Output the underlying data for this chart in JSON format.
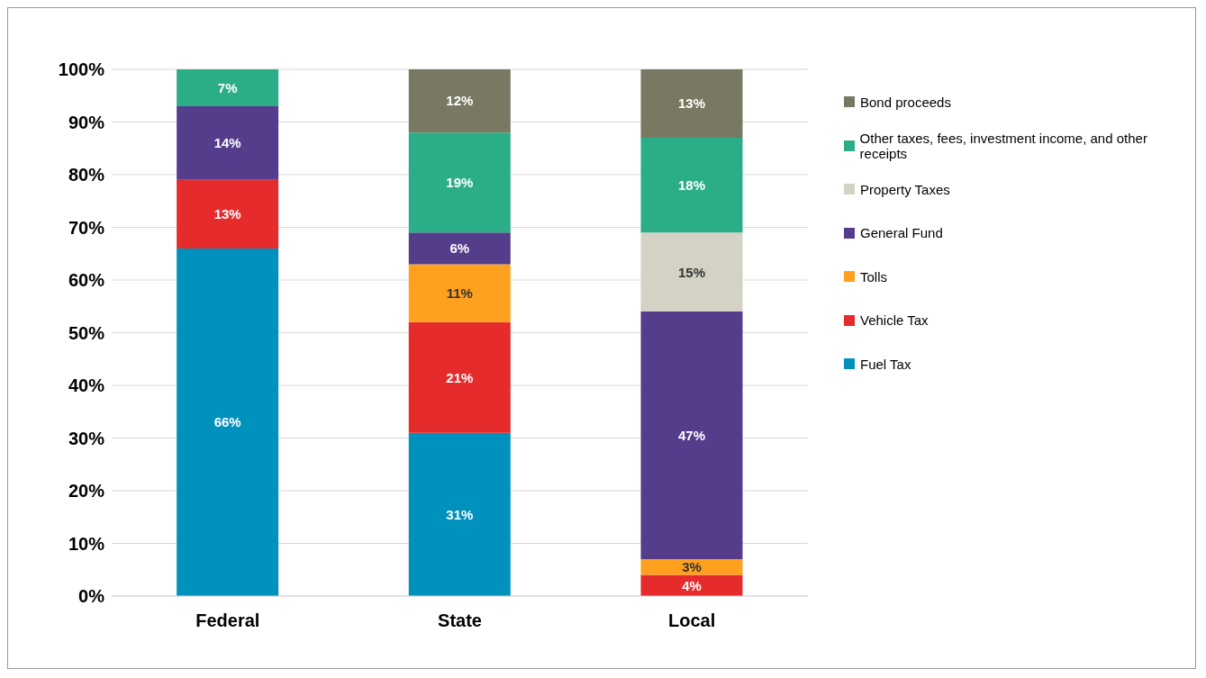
{
  "chart_data": {
    "type": "bar",
    "stacked": true,
    "categories": [
      "Federal",
      "State",
      "Local"
    ],
    "series": [
      {
        "name": "Fuel Tax",
        "color": "#0091bd",
        "values": [
          66,
          31,
          null
        ],
        "value_labels": [
          "66%",
          "31%",
          null
        ]
      },
      {
        "name": "Vehicle Tax",
        "color": "#e52b2b",
        "values": [
          13,
          21,
          4
        ],
        "value_labels": [
          "13%",
          "21%",
          "4%"
        ]
      },
      {
        "name": "Tolls",
        "color": "#ffa11f",
        "values": [
          null,
          11,
          3
        ],
        "value_labels": [
          null,
          "11%",
          "3%"
        ]
      },
      {
        "name": "General Fund",
        "color": "#553d8c",
        "values": [
          14,
          6,
          47
        ],
        "value_labels": [
          "14%",
          "6%",
          "47%"
        ]
      },
      {
        "name": "Property Taxes",
        "color": "#d3d2c4",
        "values": [
          null,
          null,
          15
        ],
        "value_labels": [
          null,
          null,
          "15%"
        ]
      },
      {
        "name": "Other taxes, fees, investment income, and other receipts",
        "color": "#2bae88",
        "values": [
          7,
          19,
          18
        ],
        "value_labels": [
          "7%",
          "19%",
          "18%"
        ]
      },
      {
        "name": "Bond proceeds",
        "color": "#787863",
        "values": [
          null,
          12,
          13
        ],
        "value_labels": [
          null,
          "12%",
          "13%"
        ]
      }
    ],
    "ylim": [
      0,
      100
    ],
    "yticks": [
      {
        "value": 0,
        "label": "0%"
      },
      {
        "value": 10,
        "label": "10%"
      },
      {
        "value": 20,
        "label": "20%"
      },
      {
        "value": 30,
        "label": "30%"
      },
      {
        "value": 40,
        "label": "40%"
      },
      {
        "value": 50,
        "label": "50%"
      },
      {
        "value": 60,
        "label": "60%"
      },
      {
        "value": 70,
        "label": "70%"
      },
      {
        "value": 80,
        "label": "80%"
      },
      {
        "value": 90,
        "label": "90%"
      },
      {
        "value": 100,
        "label": "100%"
      }
    ],
    "grid": "y",
    "legend": "right"
  }
}
